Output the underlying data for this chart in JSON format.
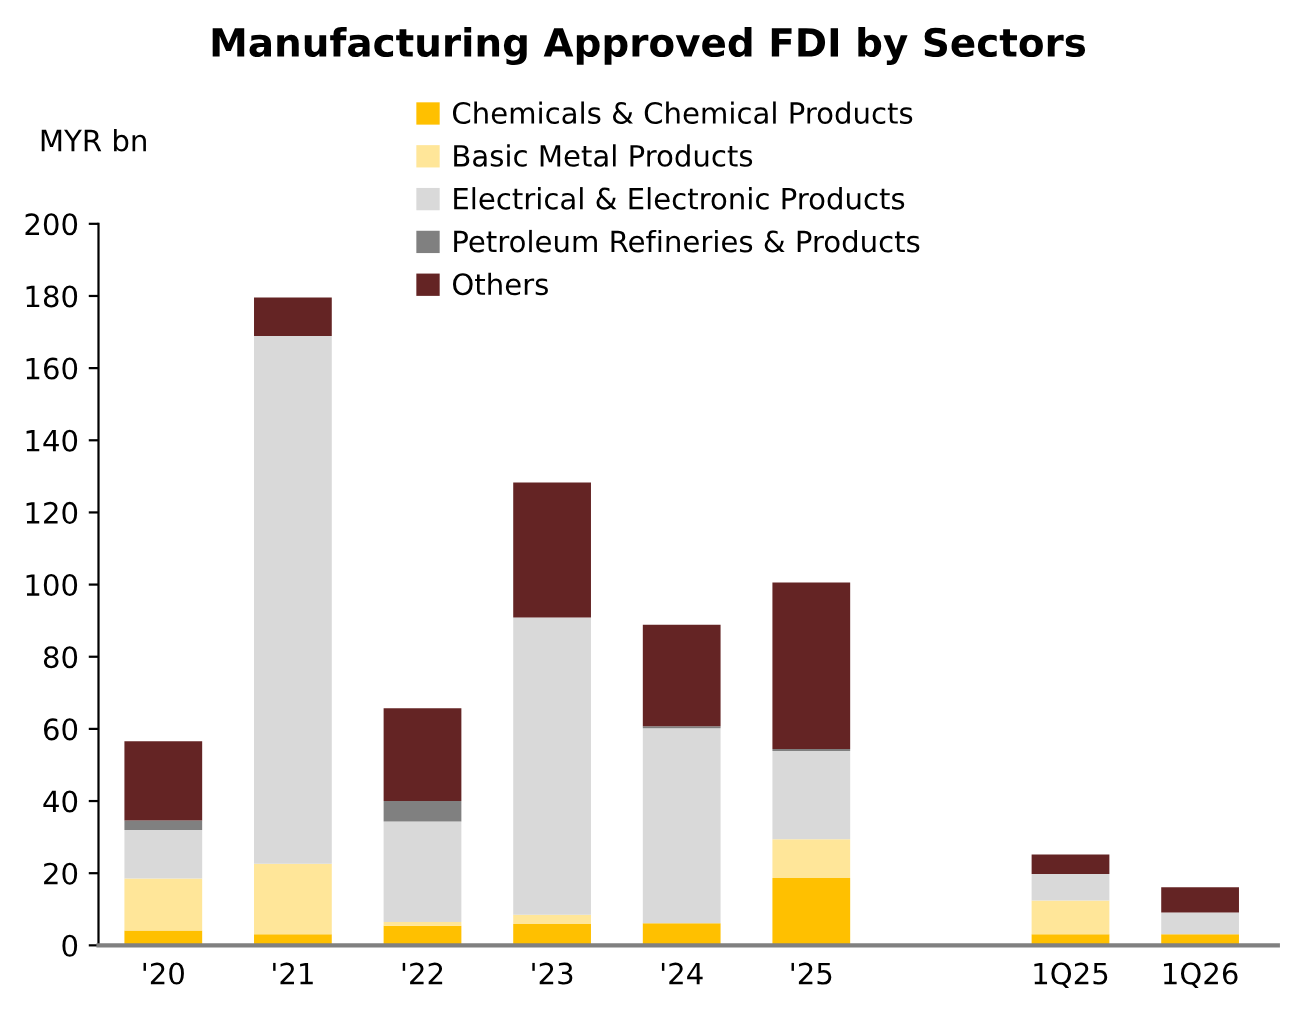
{
  "chart_data": {
    "type": "bar",
    "stacked": true,
    "title": "Manufacturing Approved FDI by Sectors",
    "ylabel": "MYR bn",
    "categories": [
      "'20",
      "'21",
      "'22",
      "'23",
      "'24",
      "'25",
      null,
      "1Q25",
      "1Q26"
    ],
    "series": [
      {
        "name": "Chemicals & Chemical Products",
        "color": "#ffc000",
        "values": [
          4.1,
          3.1,
          5.4,
          5.9,
          6.1,
          18.7,
          null,
          3.1,
          3.1
        ]
      },
      {
        "name": "Basic Metal Products",
        "color": "#ffe699",
        "values": [
          14.4,
          19.5,
          1.1,
          2.6,
          0,
          10.7,
          null,
          9.3,
          0
        ]
      },
      {
        "name": "Electrical & Electronic Products",
        "color": "#d9d9d9",
        "values": [
          13.5,
          146.3,
          27.8,
          82.4,
          54.1,
          24.5,
          null,
          7.4,
          6
        ]
      },
      {
        "name": "Petroleum Refineries & Products",
        "color": "#808080",
        "values": [
          2.6,
          0,
          5.7,
          0,
          0.5,
          0.5,
          null,
          0,
          0
        ]
      },
      {
        "name": "Others",
        "color": "#642424",
        "values": [
          22,
          10.7,
          25.7,
          37.4,
          28.2,
          46.2,
          null,
          5.4,
          7
        ]
      }
    ],
    "ylim": [
      0,
      200
    ],
    "yticks": [
      0,
      20,
      40,
      60,
      80,
      100,
      120,
      140,
      160,
      180,
      200
    ],
    "grid": false,
    "legend": "top"
  }
}
